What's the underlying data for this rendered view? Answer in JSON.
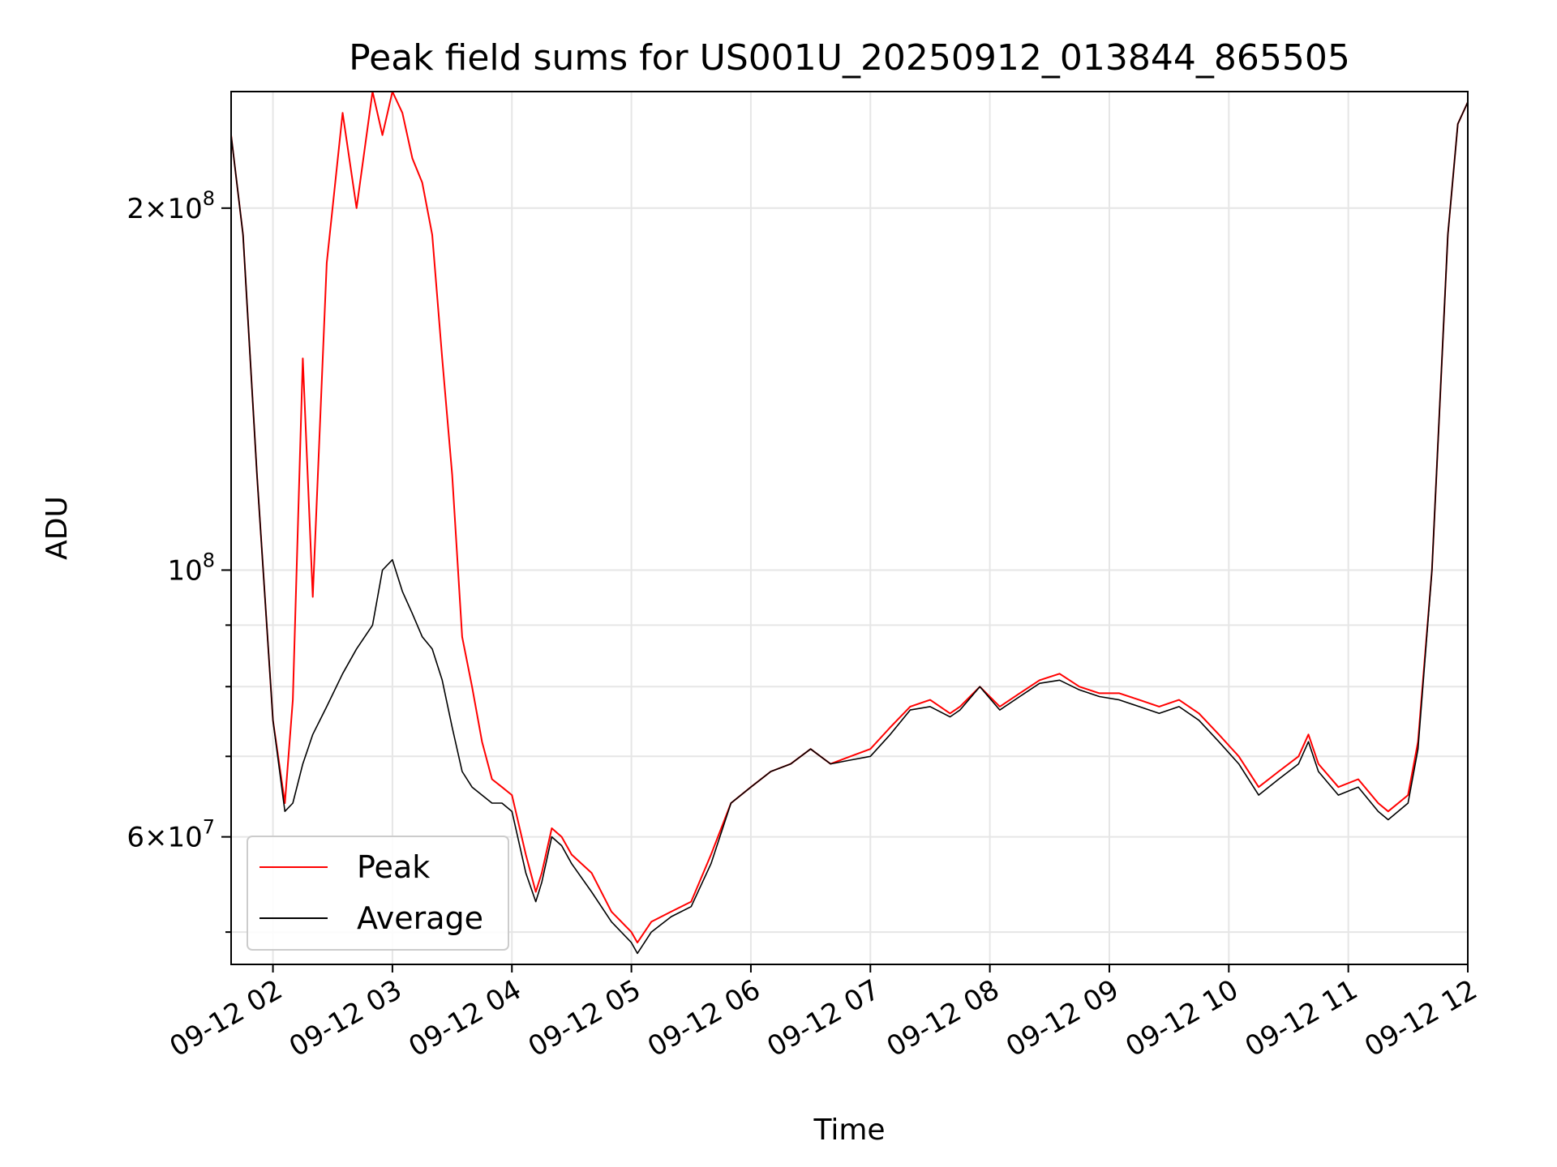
{
  "chart_data": {
    "type": "line",
    "title": "Peak field sums for US001U_20250912_013844_865505",
    "xlabel": "Time",
    "ylabel": "ADU",
    "yscale": "log",
    "xlim": [
      "2025-09-12 01:39",
      "2025-09-12 12:00"
    ],
    "ylim": [
      47000000,
      250000000
    ],
    "x_ticks": [
      "09-12 02",
      "09-12 03",
      "09-12 04",
      "09-12 05",
      "09-12 06",
      "09-12 07",
      "09-12 08",
      "09-12 09",
      "09-12 10",
      "09-12 11",
      "09-12 12"
    ],
    "y_ticks": [
      {
        "value": 200000000,
        "mantissa": "2",
        "exponent": "8"
      },
      {
        "value": 100000000,
        "mantissa": "",
        "exponent": "8"
      },
      {
        "value": 60000000,
        "mantissa": "6",
        "exponent": "7"
      }
    ],
    "y_minor_ticks": [
      50000000,
      70000000,
      80000000,
      90000000
    ],
    "grid": true,
    "legend_position": "lower-left",
    "series": [
      {
        "name": "Peak",
        "color": "#ff0000",
        "x": [
          "2025-09-12 01:39",
          "2025-09-12 01:45",
          "2025-09-12 01:52",
          "2025-09-12 02:00",
          "2025-09-12 02:06",
          "2025-09-12 02:10",
          "2025-09-12 02:15",
          "2025-09-12 02:20",
          "2025-09-12 02:27",
          "2025-09-12 02:35",
          "2025-09-12 02:42",
          "2025-09-12 02:50",
          "2025-09-12 02:55",
          "2025-09-12 03:00",
          "2025-09-12 03:05",
          "2025-09-12 03:10",
          "2025-09-12 03:15",
          "2025-09-12 03:20",
          "2025-09-12 03:25",
          "2025-09-12 03:30",
          "2025-09-12 03:35",
          "2025-09-12 03:40",
          "2025-09-12 03:45",
          "2025-09-12 03:50",
          "2025-09-12 03:55",
          "2025-09-12 04:00",
          "2025-09-12 04:07",
          "2025-09-12 04:12",
          "2025-09-12 04:15",
          "2025-09-12 04:20",
          "2025-09-12 04:25",
          "2025-09-12 04:30",
          "2025-09-12 04:40",
          "2025-09-12 04:50",
          "2025-09-12 05:00",
          "2025-09-12 05:03",
          "2025-09-12 05:10",
          "2025-09-12 05:20",
          "2025-09-12 05:30",
          "2025-09-12 05:40",
          "2025-09-12 05:50",
          "2025-09-12 06:00",
          "2025-09-12 06:10",
          "2025-09-12 06:20",
          "2025-09-12 06:30",
          "2025-09-12 06:40",
          "2025-09-12 06:50",
          "2025-09-12 07:00",
          "2025-09-12 07:10",
          "2025-09-12 07:20",
          "2025-09-12 07:30",
          "2025-09-12 07:40",
          "2025-09-12 07:45",
          "2025-09-12 07:55",
          "2025-09-12 08:05",
          "2025-09-12 08:15",
          "2025-09-12 08:25",
          "2025-09-12 08:35",
          "2025-09-12 08:45",
          "2025-09-12 08:55",
          "2025-09-12 09:05",
          "2025-09-12 09:15",
          "2025-09-12 09:25",
          "2025-09-12 09:35",
          "2025-09-12 09:45",
          "2025-09-12 09:55",
          "2025-09-12 10:05",
          "2025-09-12 10:15",
          "2025-09-12 10:25",
          "2025-09-12 10:35",
          "2025-09-12 10:40",
          "2025-09-12 10:45",
          "2025-09-12 10:55",
          "2025-09-12 11:05",
          "2025-09-12 11:15",
          "2025-09-12 11:20",
          "2025-09-12 11:30",
          "2025-09-12 11:35",
          "2025-09-12 11:42",
          "2025-09-12 11:50",
          "2025-09-12 11:55",
          "2025-09-12 12:00"
        ],
        "y": [
          230000000,
          190000000,
          120000000,
          75000000,
          64000000,
          78000000,
          150000000,
          95000000,
          180000000,
          240000000,
          200000000,
          250000000,
          230000000,
          250000000,
          240000000,
          220000000,
          210000000,
          190000000,
          150000000,
          120000000,
          88000000,
          80000000,
          72000000,
          67000000,
          66000000,
          65000000,
          58000000,
          54000000,
          56000000,
          61000000,
          60000000,
          58000000,
          56000000,
          52000000,
          50000000,
          49000000,
          51000000,
          52000000,
          53000000,
          58000000,
          64000000,
          66000000,
          68000000,
          69000000,
          71000000,
          69000000,
          70000000,
          71000000,
          74000000,
          77000000,
          78000000,
          76000000,
          77000000,
          80000000,
          77000000,
          79000000,
          81000000,
          82000000,
          80000000,
          79000000,
          79000000,
          78000000,
          77000000,
          78000000,
          76000000,
          73000000,
          70000000,
          66000000,
          68000000,
          70000000,
          73000000,
          69000000,
          66000000,
          67000000,
          64000000,
          63000000,
          65000000,
          72000000,
          100000000,
          190000000,
          235000000,
          245000000
        ]
      },
      {
        "name": "Average",
        "color": "#000000",
        "x": [
          "2025-09-12 01:39",
          "2025-09-12 01:45",
          "2025-09-12 01:52",
          "2025-09-12 02:00",
          "2025-09-12 02:06",
          "2025-09-12 02:10",
          "2025-09-12 02:15",
          "2025-09-12 02:20",
          "2025-09-12 02:27",
          "2025-09-12 02:35",
          "2025-09-12 02:42",
          "2025-09-12 02:50",
          "2025-09-12 02:55",
          "2025-09-12 03:00",
          "2025-09-12 03:05",
          "2025-09-12 03:10",
          "2025-09-12 03:15",
          "2025-09-12 03:20",
          "2025-09-12 03:25",
          "2025-09-12 03:30",
          "2025-09-12 03:35",
          "2025-09-12 03:40",
          "2025-09-12 03:45",
          "2025-09-12 03:50",
          "2025-09-12 03:55",
          "2025-09-12 04:00",
          "2025-09-12 04:07",
          "2025-09-12 04:12",
          "2025-09-12 04:15",
          "2025-09-12 04:20",
          "2025-09-12 04:25",
          "2025-09-12 04:30",
          "2025-09-12 04:40",
          "2025-09-12 04:50",
          "2025-09-12 05:00",
          "2025-09-12 05:03",
          "2025-09-12 05:10",
          "2025-09-12 05:20",
          "2025-09-12 05:30",
          "2025-09-12 05:40",
          "2025-09-12 05:50",
          "2025-09-12 06:00",
          "2025-09-12 06:10",
          "2025-09-12 06:20",
          "2025-09-12 06:30",
          "2025-09-12 06:40",
          "2025-09-12 06:50",
          "2025-09-12 07:00",
          "2025-09-12 07:10",
          "2025-09-12 07:20",
          "2025-09-12 07:30",
          "2025-09-12 07:40",
          "2025-09-12 07:45",
          "2025-09-12 07:55",
          "2025-09-12 08:05",
          "2025-09-12 08:15",
          "2025-09-12 08:25",
          "2025-09-12 08:35",
          "2025-09-12 08:45",
          "2025-09-12 08:55",
          "2025-09-12 09:05",
          "2025-09-12 09:15",
          "2025-09-12 09:25",
          "2025-09-12 09:35",
          "2025-09-12 09:45",
          "2025-09-12 09:55",
          "2025-09-12 10:05",
          "2025-09-12 10:15",
          "2025-09-12 10:25",
          "2025-09-12 10:35",
          "2025-09-12 10:40",
          "2025-09-12 10:45",
          "2025-09-12 10:55",
          "2025-09-12 11:05",
          "2025-09-12 11:15",
          "2025-09-12 11:20",
          "2025-09-12 11:30",
          "2025-09-12 11:35",
          "2025-09-12 11:42",
          "2025-09-12 11:50",
          "2025-09-12 11:55",
          "2025-09-12 12:00"
        ],
        "y": [
          230000000,
          190000000,
          120000000,
          75000000,
          63000000,
          64000000,
          69000000,
          73000000,
          77000000,
          82000000,
          86000000,
          90000000,
          100000000,
          102000000,
          96000000,
          92000000,
          88000000,
          86000000,
          81000000,
          74000000,
          68000000,
          66000000,
          65000000,
          64000000,
          64000000,
          63000000,
          56000000,
          53000000,
          55000000,
          60000000,
          59000000,
          57000000,
          54000000,
          51000000,
          49000000,
          48000000,
          50000000,
          51500000,
          52500000,
          57000000,
          64000000,
          66000000,
          68000000,
          69000000,
          71000000,
          69000000,
          69500000,
          70000000,
          73000000,
          76500000,
          77000000,
          75500000,
          76500000,
          80000000,
          76500000,
          78500000,
          80500000,
          81000000,
          79500000,
          78500000,
          78000000,
          77000000,
          76000000,
          77000000,
          75000000,
          72000000,
          69000000,
          65000000,
          67000000,
          69000000,
          72000000,
          68000000,
          65000000,
          66000000,
          63000000,
          62000000,
          64000000,
          71000000,
          100000000,
          190000000,
          235000000,
          245000000
        ]
      }
    ]
  }
}
